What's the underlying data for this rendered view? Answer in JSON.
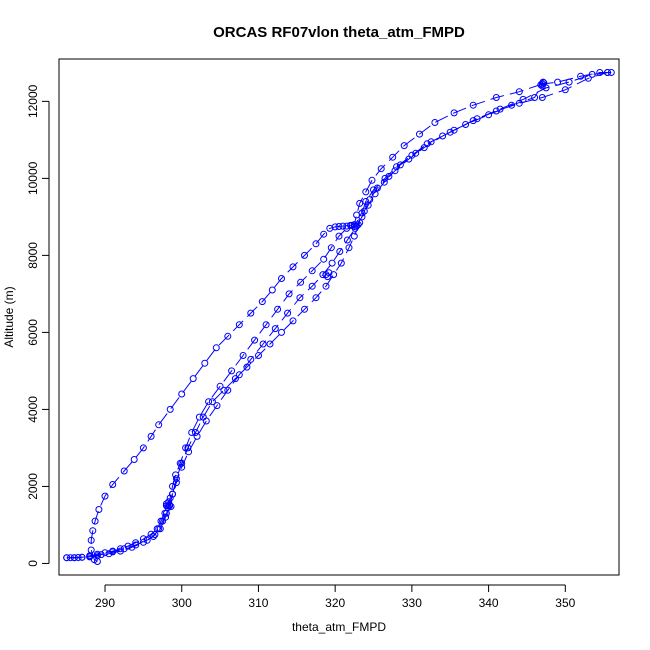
{
  "chart_data": {
    "type": "scatter",
    "title": "ORCAS RF07vlon theta_atm_FMPD",
    "xlabel": "theta_atm_FMPD",
    "ylabel": "Altitude (m)",
    "xlim": [
      284,
      357
    ],
    "ylim": [
      -300,
      13100
    ],
    "xticks": [
      290,
      300,
      310,
      320,
      330,
      340,
      350
    ],
    "yticks": [
      0,
      2000,
      4000,
      6000,
      8000,
      10000,
      12000
    ],
    "series_color": "#0000ff",
    "line_style": "dashed",
    "marker": "open-circle",
    "series": [
      {
        "values": [
          [
            285.0,
            150
          ],
          [
            286.0,
            150
          ],
          [
            287.0,
            160
          ],
          [
            288.0,
            200
          ],
          [
            289.0,
            240
          ],
          [
            290.0,
            280
          ],
          [
            291.0,
            320
          ],
          [
            292.0,
            380
          ],
          [
            293.0,
            450
          ],
          [
            294.0,
            540
          ],
          [
            295.0,
            640
          ],
          [
            296.0,
            760
          ],
          [
            296.8,
            900
          ],
          [
            297.3,
            1100
          ],
          [
            297.8,
            1300
          ],
          [
            298.2,
            1500
          ],
          [
            298.5,
            1700
          ],
          [
            298.8,
            2000
          ],
          [
            299.2,
            2300
          ],
          [
            299.8,
            2600
          ],
          [
            300.5,
            3000
          ],
          [
            301.3,
            3400
          ],
          [
            302.3,
            3800
          ],
          [
            303.5,
            4200
          ],
          [
            305.0,
            4600
          ],
          [
            306.5,
            5000
          ],
          [
            308.0,
            5400
          ],
          [
            309.5,
            5800
          ],
          [
            311.0,
            6200
          ],
          [
            312.5,
            6600
          ],
          [
            314.0,
            7000
          ],
          [
            315.5,
            7300
          ],
          [
            317.0,
            7600
          ],
          [
            318.5,
            7900
          ],
          [
            319.5,
            8200
          ],
          [
            320.5,
            8500
          ],
          [
            321.5,
            8700
          ],
          [
            322.5,
            8750
          ],
          [
            323.0,
            8800
          ],
          [
            323.5,
            9100
          ],
          [
            324.0,
            9400
          ],
          [
            325.0,
            9700
          ],
          [
            326.5,
            10000
          ],
          [
            328.0,
            10300
          ],
          [
            330.0,
            10600
          ],
          [
            332.0,
            10900
          ],
          [
            335.0,
            11200
          ],
          [
            338.0,
            11500
          ],
          [
            341.0,
            11750
          ],
          [
            344.0,
            11950
          ],
          [
            347.0,
            12100
          ],
          [
            350.0,
            12300
          ],
          [
            353.0,
            12600
          ],
          [
            355.5,
            12750
          ]
        ]
      },
      {
        "values": [
          [
            355.5,
            12750
          ],
          [
            353.5,
            12700
          ],
          [
            350.5,
            12500
          ],
          [
            347.5,
            12350
          ],
          [
            344.5,
            12050
          ],
          [
            341.5,
            11800
          ],
          [
            338.5,
            11550
          ],
          [
            335.5,
            11250
          ],
          [
            332.5,
            10950
          ],
          [
            330.5,
            10650
          ],
          [
            328.5,
            10350
          ],
          [
            327.0,
            10050
          ],
          [
            325.5,
            9750
          ],
          [
            324.5,
            9450
          ],
          [
            323.8,
            9150
          ],
          [
            323.2,
            8850
          ],
          [
            322.5,
            8500
          ],
          [
            321.8,
            8200
          ],
          [
            320.8,
            7800
          ],
          [
            319.8,
            7500
          ],
          [
            318.8,
            7200
          ],
          [
            317.5,
            6900
          ],
          [
            316.0,
            6600
          ],
          [
            314.5,
            6300
          ],
          [
            313.0,
            6000
          ],
          [
            311.5,
            5700
          ],
          [
            310.0,
            5400
          ],
          [
            308.5,
            5100
          ],
          [
            307.0,
            4800
          ],
          [
            305.5,
            4500
          ],
          [
            304.0,
            4200
          ],
          [
            302.8,
            3800
          ],
          [
            301.8,
            3400
          ],
          [
            300.8,
            3000
          ],
          [
            300.0,
            2600
          ],
          [
            299.3,
            2200
          ],
          [
            298.8,
            1800
          ],
          [
            298.4,
            1500
          ],
          [
            297.9,
            1200
          ],
          [
            297.2,
            900
          ],
          [
            296.3,
            700
          ],
          [
            295.0,
            550
          ],
          [
            293.5,
            420
          ],
          [
            292.0,
            320
          ],
          [
            290.5,
            250
          ],
          [
            289.0,
            200
          ],
          [
            288.0,
            170
          ],
          [
            287.0,
            160
          ],
          [
            286.0,
            150
          ],
          [
            285.0,
            150
          ]
        ]
      },
      {
        "values": [
          [
            285.5,
            150
          ],
          [
            286.5,
            155
          ],
          [
            288.0,
            180
          ],
          [
            289.5,
            230
          ],
          [
            291.0,
            300
          ],
          [
            292.5,
            380
          ],
          [
            294.0,
            480
          ],
          [
            295.5,
            600
          ],
          [
            296.5,
            750
          ],
          [
            297.0,
            900
          ],
          [
            297.5,
            1100
          ],
          [
            298.0,
            1300
          ],
          [
            298.4,
            1500
          ],
          [
            298.8,
            1800
          ],
          [
            299.3,
            2100
          ],
          [
            300.0,
            2500
          ],
          [
            300.9,
            2900
          ],
          [
            302.0,
            3300
          ],
          [
            303.2,
            3700
          ],
          [
            304.6,
            4100
          ],
          [
            306.0,
            4500
          ],
          [
            307.5,
            4900
          ],
          [
            309.0,
            5300
          ],
          [
            310.6,
            5700
          ],
          [
            312.2,
            6100
          ],
          [
            313.8,
            6500
          ],
          [
            315.4,
            6900
          ],
          [
            317.0,
            7200
          ],
          [
            318.4,
            7500
          ],
          [
            319.6,
            7800
          ],
          [
            320.6,
            8100
          ],
          [
            321.6,
            8400
          ],
          [
            322.6,
            8700
          ],
          [
            323.5,
            9000
          ],
          [
            324.3,
            9300
          ],
          [
            325.2,
            9600
          ],
          [
            326.4,
            9900
          ],
          [
            327.8,
            10200
          ],
          [
            329.6,
            10500
          ],
          [
            331.6,
            10800
          ],
          [
            334.0,
            11100
          ],
          [
            337.0,
            11400
          ],
          [
            340.0,
            11650
          ],
          [
            343.0,
            11900
          ],
          [
            346.0,
            12100
          ],
          [
            347.0,
            12450
          ],
          [
            349.0,
            12500
          ],
          [
            352.0,
            12650
          ],
          [
            354.5,
            12750
          ],
          [
            356.0,
            12750
          ]
        ]
      },
      {
        "values": [
          [
            347.0,
            12450
          ],
          [
            344.0,
            12250
          ],
          [
            341.0,
            12100
          ],
          [
            338.0,
            11900
          ],
          [
            335.5,
            11700
          ],
          [
            333.0,
            11450
          ],
          [
            331.0,
            11150
          ],
          [
            329.0,
            10850
          ],
          [
            327.5,
            10550
          ],
          [
            326.0,
            10250
          ],
          [
            324.8,
            9950
          ],
          [
            324.0,
            9650
          ],
          [
            323.2,
            9350
          ],
          [
            322.8,
            9050
          ],
          [
            322.5,
            8800
          ],
          [
            322.0,
            8780
          ],
          [
            321.0,
            8760
          ],
          [
            320.0,
            8740
          ],
          [
            319.3,
            8700
          ],
          [
            318.5,
            8550
          ],
          [
            317.5,
            8300
          ],
          [
            316.0,
            8000
          ],
          [
            314.5,
            7700
          ],
          [
            313.0,
            7400
          ],
          [
            311.8,
            7100
          ],
          [
            310.5,
            6800
          ],
          [
            309.0,
            6500
          ],
          [
            307.5,
            6200
          ],
          [
            306.0,
            5900
          ],
          [
            304.5,
            5600
          ],
          [
            303.0,
            5200
          ],
          [
            301.5,
            4800
          ],
          [
            300.0,
            4400
          ],
          [
            298.5,
            4000
          ],
          [
            297.0,
            3600
          ],
          [
            296.0,
            3300
          ],
          [
            295.0,
            3000
          ],
          [
            293.8,
            2700
          ],
          [
            292.5,
            2400
          ],
          [
            291.0,
            2050
          ],
          [
            290.0,
            1750
          ],
          [
            289.2,
            1400
          ],
          [
            288.7,
            1100
          ],
          [
            288.4,
            850
          ],
          [
            288.2,
            600
          ],
          [
            288.2,
            350
          ],
          [
            288.6,
            100
          ],
          [
            289.0,
            50
          ]
        ]
      },
      {
        "values": [
          [
            298.0,
            1500
          ],
          [
            298.2,
            1450
          ],
          [
            298.4,
            1520
          ],
          [
            298.6,
            1480
          ],
          [
            298.0,
            1550
          ],
          [
            298.3,
            1600
          ],
          [
            318.8,
            7500
          ],
          [
            319.2,
            7550
          ],
          [
            319.0,
            7450
          ],
          [
            347.0,
            12400
          ],
          [
            347.2,
            12480
          ],
          [
            346.8,
            12430
          ],
          [
            347.1,
            12500
          ],
          [
            320.5,
            8750
          ],
          [
            321.5,
            8760
          ],
          [
            322.2,
            8780
          ],
          [
            322.8,
            8760
          ]
        ]
      }
    ]
  }
}
